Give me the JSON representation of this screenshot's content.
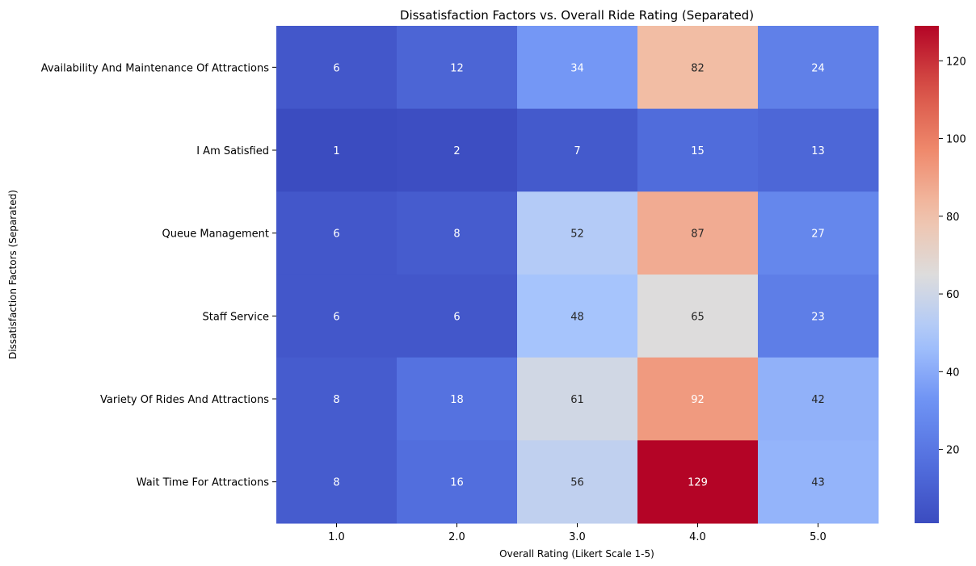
{
  "chart_data": {
    "type": "heatmap",
    "title": "Dissatisfaction Factors vs. Overall Ride Rating (Separated)",
    "xlabel": "Overall Rating (Likert Scale 1-5)",
    "ylabel": "Dissatisfaction Factors (Separated)",
    "x_categories": [
      "1.0",
      "2.0",
      "3.0",
      "4.0",
      "5.0"
    ],
    "y_categories": [
      "Availability And Maintenance Of Attractions",
      "I Am Satisfied",
      "Queue Management",
      "Staff Service",
      "Variety Of Rides And Attractions",
      "Wait Time For Attractions"
    ],
    "values": [
      [
        6,
        12,
        34,
        82,
        24
      ],
      [
        1,
        2,
        7,
        15,
        13
      ],
      [
        6,
        8,
        52,
        87,
        27
      ],
      [
        6,
        6,
        48,
        65,
        23
      ],
      [
        8,
        18,
        61,
        92,
        42
      ],
      [
        8,
        16,
        56,
        129,
        43
      ]
    ],
    "colormap": "coolwarm",
    "colorbar": {
      "min": 1,
      "max": 129,
      "ticks": [
        "20",
        "40",
        "60",
        "80",
        "100",
        "120"
      ]
    },
    "annotations": true
  }
}
